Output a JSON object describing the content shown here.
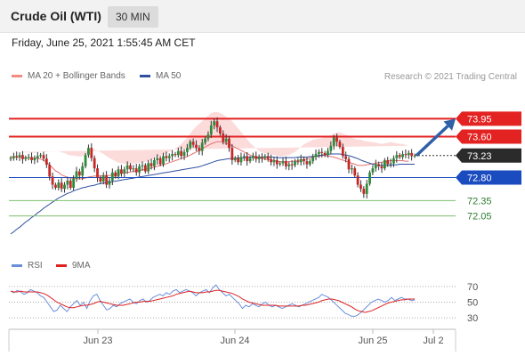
{
  "header": {
    "title": "Crude Oil (WTI)",
    "timeframe": "30 MIN"
  },
  "timestamp": "Friday, June 25, 2021 1:55:45 AM CET",
  "legend": {
    "ma20": "MA 20 + Bollinger Bands",
    "ma50": "MA 50",
    "rsi": "RSI",
    "ma9": "9MA",
    "credit": "Research © 2021 Trading Central"
  },
  "colors": {
    "up": "#2e8b3a",
    "down": "#c62828",
    "ma20": "#e57373",
    "ma50": "#2f4f9f",
    "band": "#fbd5d5",
    "resistance": "#e32222",
    "support_blue": "#1a4bbf",
    "support_green": "#7cbf6e",
    "arrow": "#2f5fa8",
    "rsi": "#6a8fd9",
    "ma9": "#dd2222"
  },
  "chart_data": [
    {
      "type": "candlestick",
      "xlabel": "",
      "ylabel": "",
      "x_ticks": [
        "Jun 23",
        "Jun 24",
        "Jun 25",
        "Jul 2"
      ],
      "ylim": [
        71.4,
        74.6
      ],
      "current_price": 73.23,
      "levels": [
        {
          "value": 73.95,
          "label": "73.95",
          "kind": "resistance"
        },
        {
          "value": 73.6,
          "label": "73.60",
          "kind": "resistance"
        },
        {
          "value": 73.23,
          "label": "73.23",
          "kind": "current"
        },
        {
          "value": 72.8,
          "label": "72.80",
          "kind": "support_blue"
        },
        {
          "value": 72.35,
          "label": "72.35",
          "kind": "support_green"
        },
        {
          "value": 72.05,
          "label": "72.05",
          "kind": "support_green"
        }
      ],
      "target_arrow": {
        "from": 73.23,
        "to": 73.95
      },
      "closes": [
        73.18,
        73.22,
        73.2,
        73.24,
        73.16,
        73.19,
        73.2,
        73.14,
        73.18,
        73.22,
        73.24,
        73.17,
        73.05,
        72.82,
        72.66,
        72.6,
        72.7,
        72.58,
        72.66,
        72.74,
        72.6,
        72.78,
        72.92,
        72.84,
        73.02,
        73.24,
        73.38,
        73.18,
        72.98,
        72.8,
        72.72,
        72.84,
        72.66,
        72.74,
        72.9,
        72.82,
        72.96,
        72.88,
        72.96,
        73.04,
        72.96,
        72.98,
        72.9,
        73.02,
        73.04,
        72.92,
        73.08,
        73.02,
        73.14,
        73.18,
        73.06,
        73.22,
        73.18,
        73.22,
        73.26,
        73.24,
        73.32,
        73.22,
        73.3,
        73.38,
        73.5,
        73.44,
        73.38,
        73.32,
        73.48,
        73.56,
        73.64,
        73.82,
        73.9,
        73.78,
        73.66,
        73.5,
        73.56,
        73.38,
        73.14,
        73.18,
        73.1,
        73.2,
        73.22,
        73.12,
        73.18,
        73.22,
        73.16,
        73.2,
        73.18,
        73.22,
        73.16,
        73.1,
        73.14,
        73.06,
        73.08,
        73.12,
        73.02,
        73.06,
        73.04,
        73.12,
        73.1,
        73.16,
        73.12,
        73.06,
        73.12,
        73.2,
        73.26,
        73.3,
        73.28,
        73.24,
        73.32,
        73.42,
        73.58,
        73.5,
        73.4,
        73.22,
        73.16,
        72.96,
        72.98,
        72.84,
        72.66,
        72.58,
        72.48,
        72.68,
        72.9,
        72.98,
        73.06,
        73.02,
        72.98,
        73.14,
        73.06,
        73.08,
        73.18,
        73.24,
        73.2,
        73.26,
        73.24,
        73.28,
        73.22,
        73.23
      ],
      "ma20": [
        73.2,
        73.19,
        73.2,
        73.2,
        73.19,
        73.19,
        73.19,
        73.18,
        73.18,
        73.18,
        73.16,
        73.14,
        73.1,
        73.05,
        72.99,
        72.93,
        72.9,
        72.85,
        72.83,
        72.8,
        72.79,
        72.79,
        72.78,
        72.77,
        72.78,
        72.79,
        72.81,
        72.82,
        72.83,
        72.83,
        72.83,
        72.84,
        72.84,
        72.84,
        72.85,
        72.86,
        72.87,
        72.88,
        72.89,
        72.9,
        72.91,
        72.92,
        72.93,
        72.94,
        72.95,
        72.96,
        72.97,
        72.99,
        73.0,
        73.02,
        73.04,
        73.05,
        73.07,
        73.09,
        73.11,
        73.13,
        73.15,
        73.17,
        73.19,
        73.21,
        73.24,
        73.27,
        73.3,
        73.33,
        73.36,
        73.4,
        73.43,
        73.46,
        73.48,
        73.5,
        73.5,
        73.49,
        73.47,
        73.45,
        73.42,
        73.39,
        73.36,
        73.33,
        73.3,
        73.27,
        73.24,
        73.22,
        73.2,
        73.18,
        73.17,
        73.16,
        73.15,
        73.14,
        73.13,
        73.12,
        73.11,
        73.11,
        73.11,
        73.11,
        73.12,
        73.12,
        73.13,
        73.14,
        73.15,
        73.16,
        73.18,
        73.2,
        73.21,
        73.22,
        73.23,
        73.23,
        73.22,
        73.21,
        73.2,
        73.18,
        73.16,
        73.14,
        73.12,
        73.1,
        73.08,
        73.06,
        73.04,
        73.04,
        73.04,
        73.05,
        73.06,
        73.07,
        73.08,
        73.09,
        73.1,
        73.11,
        73.12,
        73.13,
        73.13,
        73.13,
        73.13,
        73.13,
        73.12,
        73.12
      ],
      "ma50": [
        71.7,
        71.74,
        71.79,
        71.83,
        71.88,
        71.93,
        71.97,
        72.02,
        72.06,
        72.11,
        72.15,
        72.2,
        72.24,
        72.28,
        72.32,
        72.36,
        72.4,
        72.43,
        72.46,
        72.49,
        72.51,
        72.54,
        72.56,
        72.58,
        72.6,
        72.61,
        72.63,
        72.64,
        72.65,
        72.67,
        72.68,
        72.69,
        72.7,
        72.71,
        72.72,
        72.73,
        72.74,
        72.75,
        72.76,
        72.77,
        72.78,
        72.79,
        72.8,
        72.81,
        72.82,
        72.83,
        72.84,
        72.85,
        72.86,
        72.87,
        72.88,
        72.89,
        72.9,
        72.91,
        72.92,
        72.93,
        72.94,
        72.95,
        72.96,
        72.97,
        72.98,
        72.99,
        73.0,
        73.01,
        73.03,
        73.05,
        73.07,
        73.09,
        73.11,
        73.13,
        73.14,
        73.15,
        73.16,
        73.17,
        73.17,
        73.18,
        73.18,
        73.19,
        73.19,
        73.19,
        73.2,
        73.2,
        73.2,
        73.2,
        73.2,
        73.2,
        73.2,
        73.2,
        73.2,
        73.19,
        73.19,
        73.19,
        73.19,
        73.19,
        73.19,
        73.19,
        73.2,
        73.2,
        73.2,
        73.2,
        73.21,
        73.21,
        73.22,
        73.23,
        73.24,
        73.25,
        73.25,
        73.26,
        73.26,
        73.26,
        73.26,
        73.25,
        73.24,
        73.23,
        73.21,
        73.19,
        73.17,
        73.14,
        73.12,
        73.1,
        73.08,
        73.06,
        73.05,
        73.04,
        73.04,
        73.04,
        73.04,
        73.04,
        73.05,
        73.05,
        73.06,
        73.06,
        73.06,
        73.06,
        73.06,
        73.06
      ],
      "band_width": [
        0.1,
        0.1,
        0.1,
        0.1,
        0.1,
        0.1,
        0.1,
        0.1,
        0.1,
        0.12,
        0.14,
        0.16,
        0.2,
        0.26,
        0.32,
        0.38,
        0.42,
        0.44,
        0.45,
        0.45,
        0.44,
        0.44,
        0.44,
        0.44,
        0.44,
        0.45,
        0.5,
        0.54,
        0.52,
        0.5,
        0.46,
        0.42,
        0.38,
        0.34,
        0.3,
        0.26,
        0.22,
        0.2,
        0.18,
        0.16,
        0.16,
        0.15,
        0.15,
        0.15,
        0.15,
        0.15,
        0.15,
        0.16,
        0.17,
        0.18,
        0.18,
        0.19,
        0.2,
        0.21,
        0.22,
        0.24,
        0.26,
        0.29,
        0.33,
        0.37,
        0.42,
        0.47,
        0.5,
        0.52,
        0.54,
        0.56,
        0.58,
        0.6,
        0.6,
        0.58,
        0.56,
        0.54,
        0.52,
        0.5,
        0.48,
        0.44,
        0.4,
        0.36,
        0.32,
        0.28,
        0.24,
        0.2,
        0.17,
        0.14,
        0.12,
        0.11,
        0.11,
        0.11,
        0.11,
        0.11,
        0.11,
        0.11,
        0.12,
        0.13,
        0.15,
        0.18,
        0.22,
        0.26,
        0.3,
        0.32,
        0.33,
        0.34,
        0.34,
        0.34,
        0.34,
        0.36,
        0.38,
        0.42,
        0.46,
        0.5,
        0.52,
        0.52,
        0.52,
        0.52,
        0.5,
        0.5,
        0.5,
        0.5,
        0.48,
        0.46,
        0.44,
        0.42,
        0.4,
        0.38,
        0.36,
        0.36,
        0.36,
        0.36,
        0.35,
        0.34,
        0.33,
        0.33,
        0.32,
        0.3,
        0.28,
        0.28
      ]
    },
    {
      "type": "line",
      "xlabel": "",
      "ylabel": "",
      "x_ticks": [
        "Jun 23",
        "Jun 24",
        "Jun 25",
        "Jul 2"
      ],
      "y_ticks": [
        70,
        50,
        30
      ],
      "ylim": [
        20,
        80
      ],
      "series": [
        {
          "name": "RSI",
          "values": [
            64,
            62,
            65,
            63,
            60,
            62,
            66,
            64,
            62,
            58,
            56,
            50,
            44,
            38,
            40,
            46,
            42,
            38,
            44,
            48,
            52,
            46,
            50,
            42,
            52,
            58,
            60,
            52,
            46,
            40,
            42,
            46,
            44,
            48,
            50,
            52,
            54,
            50,
            48,
            52,
            54,
            50,
            52,
            56,
            58,
            60,
            58,
            62,
            60,
            64,
            66,
            62,
            64,
            66,
            64,
            62,
            58,
            62,
            64,
            66,
            62,
            68,
            72,
            66,
            62,
            58,
            60,
            56,
            52,
            48,
            42,
            46,
            44,
            48,
            46,
            44,
            48,
            50,
            46,
            44,
            46,
            44,
            42,
            44,
            46,
            48,
            46,
            44,
            46,
            48,
            50,
            52,
            54,
            56,
            60,
            58,
            56,
            52,
            48,
            44,
            40,
            36,
            34,
            32,
            32,
            34,
            38,
            42,
            46,
            50,
            52,
            54,
            52,
            50,
            52,
            56,
            52,
            54,
            56,
            54,
            54,
            52,
            53
          ]
        },
        {
          "name": "9MA",
          "values": [
            64,
            63,
            63,
            64,
            63,
            63,
            63,
            63,
            63,
            62,
            61,
            59,
            56,
            53,
            50,
            48,
            46,
            44,
            43,
            43,
            44,
            45,
            46,
            46,
            47,
            48,
            50,
            51,
            50,
            49,
            48,
            47,
            46,
            46,
            46,
            47,
            48,
            49,
            50,
            50,
            51,
            51,
            51,
            52,
            53,
            54,
            55,
            56,
            57,
            58,
            60,
            61,
            62,
            63,
            64,
            63,
            62,
            62,
            62,
            63,
            63,
            64,
            65,
            65,
            64,
            63,
            62,
            61,
            59,
            57,
            54,
            52,
            50,
            49,
            48,
            47,
            46,
            46,
            46,
            46,
            46,
            45,
            45,
            45,
            45,
            45,
            45,
            45,
            46,
            46,
            47,
            48,
            49,
            50,
            52,
            53,
            54,
            54,
            53,
            52,
            50,
            48,
            46,
            44,
            41,
            39,
            38,
            37,
            38,
            39,
            41,
            43,
            45,
            47,
            49,
            50,
            51,
            52,
            53,
            53,
            54,
            54,
            54
          ]
        }
      ]
    }
  ]
}
